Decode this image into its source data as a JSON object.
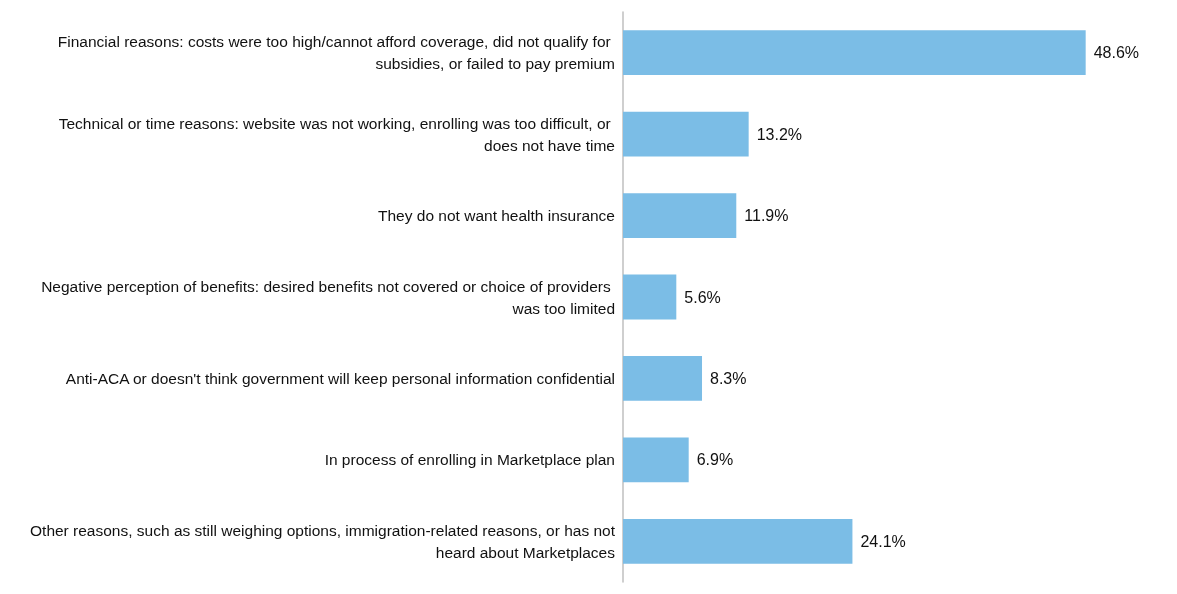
{
  "chart_data": {
    "type": "bar",
    "orientation": "horizontal",
    "categories": [
      "Financial reasons: costs were too high/cannot afford coverage, did not qualify for subsidies, or failed to pay premium",
      "Technical or time reasons: website was not working, enrolling was too difficult, or does not have time",
      "They do not want health insurance",
      "Negative perception of benefits: desired benefits not covered or choice of providers was too limited",
      "Anti-ACA or doesn't think government will keep personal information confidential",
      "In process of enrolling in Marketplace plan",
      "Other reasons, such as still weighing options, immigration-related reasons, or has not heard about Marketplaces"
    ],
    "values": [
      48.6,
      13.2,
      11.9,
      5.6,
      8.3,
      6.9,
      24.1
    ],
    "color": "#7bbde6",
    "value_labels": [
      "48.6%",
      "13.2%",
      "11.9%",
      "5.6%",
      "8.3%",
      "6.9%",
      "24.1%"
    ],
    "tick_labels": "y"
  }
}
